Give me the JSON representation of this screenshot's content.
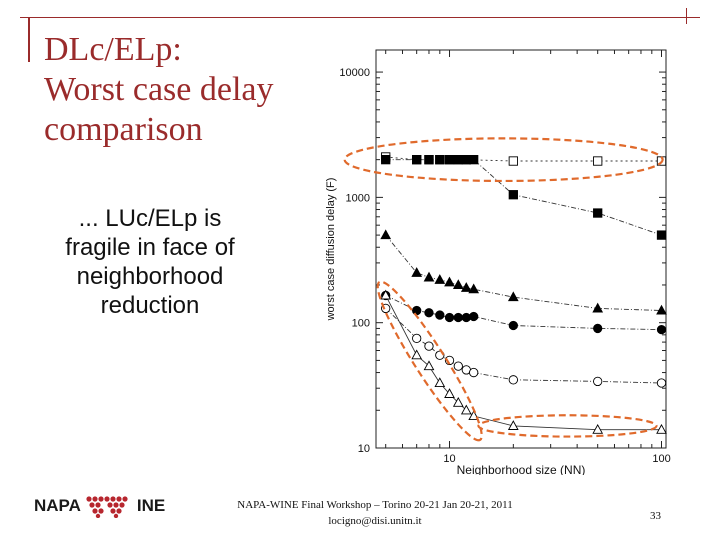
{
  "slide": {
    "title_lines": [
      "DLc/ELp:",
      "Worst case delay",
      "comparison"
    ],
    "subtitle_lines": [
      "... LUc/ELp is",
      "fragile in face of",
      "neighborhood",
      "reduction"
    ],
    "footer_lines": [
      "NAPA-WINE Final Workshop – Torino 20-21 Jan 20-21, 2011",
      "locigno@disi.unitn.it"
    ],
    "page_number": "33",
    "logo": {
      "left_text": "NAPA",
      "right_text": "INE"
    },
    "accent_color": "#9a2b2b",
    "highlight_color": "#e06a2c"
  },
  "chart_data": {
    "type": "scatter",
    "xlabel": "Neighborhood size (NN)",
    "ylabel": "worst case diffusion delay (F)",
    "xscale": "log",
    "yscale": "log",
    "xlim": [
      4.5,
      105
    ],
    "ylim": [
      10,
      15000
    ],
    "xticks": [
      {
        "v": 10,
        "label": "10"
      },
      {
        "v": 100,
        "label": "100"
      }
    ],
    "yticks": [
      {
        "v": 10,
        "label": "10"
      },
      {
        "v": 100,
        "label": "100"
      },
      {
        "v": 1000,
        "label": "1000"
      },
      {
        "v": 10000,
        "label": "10000"
      }
    ],
    "series": [
      {
        "name": "open squares",
        "marker": "square",
        "filled": false,
        "line": "dotted",
        "x": [
          5,
          7,
          8,
          9,
          10,
          11,
          12,
          20,
          50,
          100
        ],
        "y": [
          2100,
          2000,
          2000,
          2000,
          2000,
          2000,
          2000,
          1950,
          1950,
          1950
        ]
      },
      {
        "name": "filled squares",
        "marker": "square",
        "filled": true,
        "line": "dashdot",
        "x": [
          5,
          7,
          8,
          9,
          10,
          11,
          12,
          13,
          20,
          50,
          100
        ],
        "y": [
          2000,
          2000,
          2000,
          2000,
          2000,
          2000,
          2000,
          2000,
          1050,
          750,
          500
        ]
      },
      {
        "name": "filled triangles",
        "marker": "triangle",
        "filled": true,
        "line": "dashdot",
        "x": [
          5,
          7,
          8,
          9,
          10,
          11,
          12,
          13,
          20,
          50,
          100
        ],
        "y": [
          500,
          250,
          230,
          220,
          210,
          200,
          190,
          185,
          160,
          130,
          125
        ]
      },
      {
        "name": "filled circles",
        "marker": "circle",
        "filled": true,
        "line": "dashdot",
        "x": [
          5,
          7,
          8,
          9,
          10,
          11,
          12,
          13,
          20,
          50,
          100
        ],
        "y": [
          165,
          125,
          120,
          115,
          110,
          110,
          110,
          112,
          95,
          90,
          88
        ]
      },
      {
        "name": "open circles",
        "marker": "circle",
        "filled": false,
        "line": "dashdot",
        "x": [
          5,
          7,
          8,
          9,
          10,
          11,
          12,
          13,
          20,
          50,
          100
        ],
        "y": [
          130,
          75,
          65,
          55,
          50,
          45,
          42,
          40,
          35,
          34,
          33
        ]
      },
      {
        "name": "open triangles",
        "marker": "triangle",
        "filled": false,
        "line": "solid",
        "x": [
          5,
          7,
          8,
          9,
          10,
          11,
          12,
          13,
          20,
          50,
          100
        ],
        "y": [
          165,
          55,
          45,
          33,
          27,
          23,
          20,
          18,
          15,
          14,
          14
        ]
      }
    ],
    "highlights": [
      {
        "name": "highlight-top",
        "shape": "ellipse",
        "cx": 18,
        "cy": 2000,
        "rx_decades": 0.75,
        "ry_decades": 0.17
      },
      {
        "name": "highlight-left",
        "shape": "rotated-ellipse",
        "from": [
          5,
          175
        ],
        "to": [
          13,
          14
        ]
      },
      {
        "name": "highlight-bottom-right",
        "shape": "ellipse",
        "cx": 36,
        "cy": 15,
        "rx_decades": 0.42,
        "ry_decades": 0.085
      }
    ]
  }
}
